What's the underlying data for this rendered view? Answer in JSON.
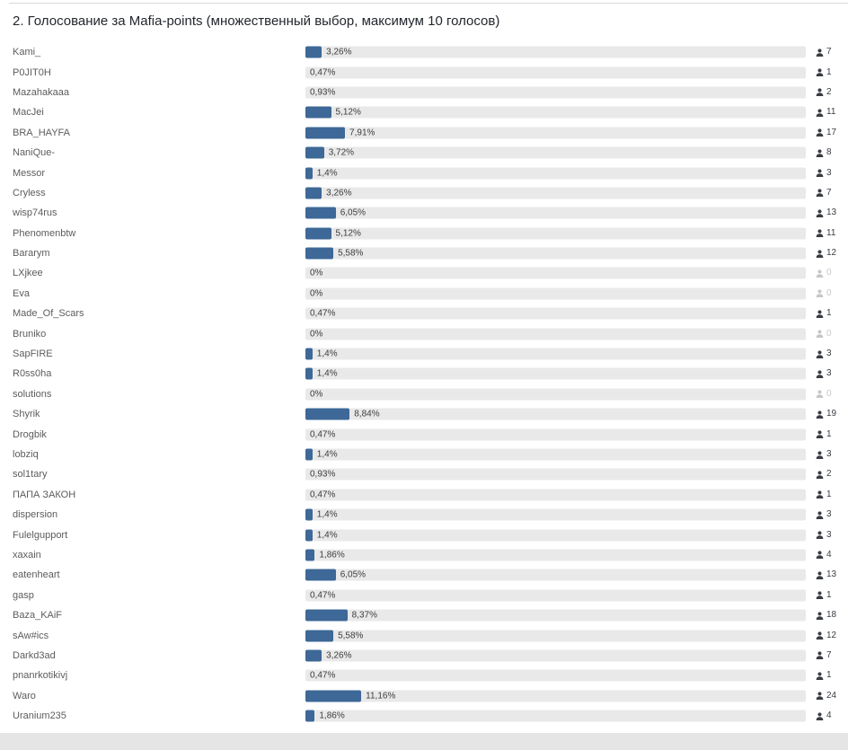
{
  "poll": {
    "title": "2. Голосование за Mafia-points (множественный выбор, максимум 10 голосов)",
    "colors": {
      "bar_fill": "#3d6897",
      "bar_track": "#e9e9e9",
      "vote_count_text": "#393d43",
      "vote_count_zero_text": "#c6c7c9"
    },
    "icons": {
      "votes": "person-icon"
    },
    "options": [
      {
        "name": "Kami_",
        "percent": 3.26,
        "percent_label": "3,26%",
        "votes": 7
      },
      {
        "name": "P0JIT0H",
        "percent": 0.47,
        "percent_label": "0,47%",
        "votes": 1
      },
      {
        "name": "Mazahakaaa",
        "percent": 0.93,
        "percent_label": "0,93%",
        "votes": 2
      },
      {
        "name": "MacJei",
        "percent": 5.12,
        "percent_label": "5,12%",
        "votes": 11
      },
      {
        "name": "BRA_HAYFA",
        "percent": 7.91,
        "percent_label": "7,91%",
        "votes": 17
      },
      {
        "name": "NaniQue-",
        "percent": 3.72,
        "percent_label": "3,72%",
        "votes": 8
      },
      {
        "name": "Messor",
        "percent": 1.4,
        "percent_label": "1,4%",
        "votes": 3
      },
      {
        "name": "Cryless",
        "percent": 3.26,
        "percent_label": "3,26%",
        "votes": 7
      },
      {
        "name": "wisp74rus",
        "percent": 6.05,
        "percent_label": "6,05%",
        "votes": 13
      },
      {
        "name": "Phenomenbtw",
        "percent": 5.12,
        "percent_label": "5,12%",
        "votes": 11
      },
      {
        "name": "Bararym",
        "percent": 5.58,
        "percent_label": "5,58%",
        "votes": 12
      },
      {
        "name": "LXjkee",
        "percent": 0,
        "percent_label": "0%",
        "votes": 0
      },
      {
        "name": "Eva",
        "percent": 0,
        "percent_label": "0%",
        "votes": 0
      },
      {
        "name": "Made_Of_Scars",
        "percent": 0.47,
        "percent_label": "0,47%",
        "votes": 1
      },
      {
        "name": "Bruniko",
        "percent": 0,
        "percent_label": "0%",
        "votes": 0
      },
      {
        "name": "SapFIRE",
        "percent": 1.4,
        "percent_label": "1,4%",
        "votes": 3
      },
      {
        "name": "R0ss0ha",
        "percent": 1.4,
        "percent_label": "1,4%",
        "votes": 3
      },
      {
        "name": "solutions",
        "percent": 0,
        "percent_label": "0%",
        "votes": 0
      },
      {
        "name": "Shyrik",
        "percent": 8.84,
        "percent_label": "8,84%",
        "votes": 19
      },
      {
        "name": "Drogbik",
        "percent": 0.47,
        "percent_label": "0,47%",
        "votes": 1
      },
      {
        "name": "lobziq",
        "percent": 1.4,
        "percent_label": "1,4%",
        "votes": 3
      },
      {
        "name": "sol1tary",
        "percent": 0.93,
        "percent_label": "0,93%",
        "votes": 2
      },
      {
        "name": "ПАПА ЗАКОН",
        "percent": 0.47,
        "percent_label": "0,47%",
        "votes": 1
      },
      {
        "name": "dispersion",
        "percent": 1.4,
        "percent_label": "1,4%",
        "votes": 3
      },
      {
        "name": "Fulelgupport",
        "percent": 1.4,
        "percent_label": "1,4%",
        "votes": 3
      },
      {
        "name": "xaxain",
        "percent": 1.86,
        "percent_label": "1,86%",
        "votes": 4
      },
      {
        "name": "eatenheart",
        "percent": 6.05,
        "percent_label": "6,05%",
        "votes": 13
      },
      {
        "name": "gasp",
        "percent": 0.47,
        "percent_label": "0,47%",
        "votes": 1
      },
      {
        "name": "Baza_KAiF",
        "percent": 8.37,
        "percent_label": "8,37%",
        "votes": 18
      },
      {
        "name": "sAw#ics",
        "percent": 5.58,
        "percent_label": "5,58%",
        "votes": 12
      },
      {
        "name": "Darkd3ad",
        "percent": 3.26,
        "percent_label": "3,26%",
        "votes": 7
      },
      {
        "name": "pnanrkotikivj",
        "percent": 0.47,
        "percent_label": "0,47%",
        "votes": 1
      },
      {
        "name": "Waro",
        "percent": 11.16,
        "percent_label": "11,16%",
        "votes": 24
      },
      {
        "name": "Uranium235",
        "percent": 1.86,
        "percent_label": "1,86%",
        "votes": 4
      }
    ]
  },
  "chart_data": {
    "type": "bar",
    "orientation": "horizontal",
    "title": "2. Голосование за Mafia-points (множественный выбор, максимум 10 голосов)",
    "categories": [
      "Kami_",
      "P0JIT0H",
      "Mazahakaaa",
      "MacJei",
      "BRA_HAYFA",
      "NaniQue-",
      "Messor",
      "Cryless",
      "wisp74rus",
      "Phenomenbtw",
      "Bararym",
      "LXjkee",
      "Eva",
      "Made_Of_Scars",
      "Bruniko",
      "SapFIRE",
      "R0ss0ha",
      "solutions",
      "Shyrik",
      "Drogbik",
      "lobziq",
      "sol1tary",
      "ПАПА ЗАКОН",
      "dispersion",
      "Fulelgupport",
      "xaxain",
      "eatenheart",
      "gasp",
      "Baza_KAiF",
      "sAw#ics",
      "Darkd3ad",
      "pnanrkotikivj",
      "Waro",
      "Uranium235"
    ],
    "series": [
      {
        "name": "percent",
        "values": [
          3.26,
          0.47,
          0.93,
          5.12,
          7.91,
          3.72,
          1.4,
          3.26,
          6.05,
          5.12,
          5.58,
          0,
          0,
          0.47,
          0,
          1.4,
          1.4,
          0,
          8.84,
          0.47,
          1.4,
          0.93,
          0.47,
          1.4,
          1.4,
          1.86,
          6.05,
          0.47,
          8.37,
          5.58,
          3.26,
          0.47,
          11.16,
          1.86
        ]
      },
      {
        "name": "votes",
        "values": [
          7,
          1,
          2,
          11,
          17,
          8,
          3,
          7,
          13,
          11,
          12,
          0,
          0,
          1,
          0,
          3,
          3,
          0,
          19,
          1,
          3,
          2,
          1,
          3,
          3,
          4,
          13,
          1,
          18,
          12,
          7,
          1,
          24,
          4
        ]
      }
    ],
    "xlim": [
      0,
      100
    ],
    "grid": false,
    "legend": false
  }
}
